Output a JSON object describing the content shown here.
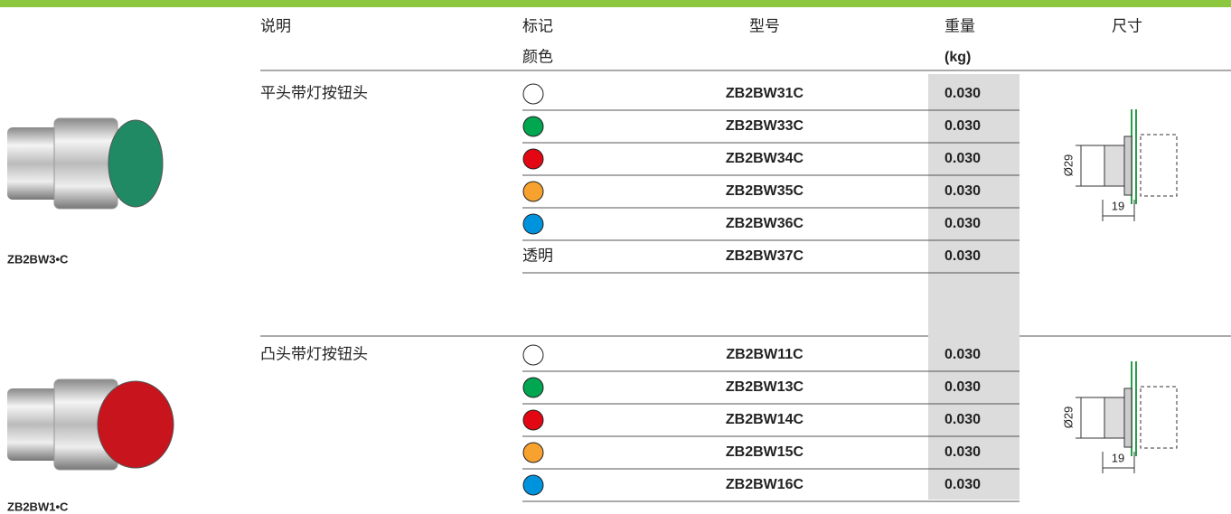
{
  "header": {
    "description": "说明",
    "marking": "标记",
    "color": "颜色",
    "model": "型号",
    "weight": "重量",
    "weight_unit": "(kg)",
    "dimensions": "尺寸"
  },
  "groups": [
    {
      "image_label": "ZB2BW3•C",
      "description": "平头带灯按钮头",
      "cap_color": "#1f8a63",
      "diameter": "Ø29",
      "length": "19",
      "rows": [
        {
          "marker_color": "#ffffff",
          "model": "ZB2BW31C",
          "weight": "0.030"
        },
        {
          "marker_color": "#00a650",
          "model": "ZB2BW33C",
          "weight": "0.030"
        },
        {
          "marker_color": "#e30613",
          "model": "ZB2BW34C",
          "weight": "0.030"
        },
        {
          "marker_color": "#f7a12f",
          "model": "ZB2BW35C",
          "weight": "0.030"
        },
        {
          "marker_color": "#0093dd",
          "model": "ZB2BW36C",
          "weight": "0.030"
        },
        {
          "marker_label": "透明",
          "model": "ZB2BW37C",
          "weight": "0.030"
        }
      ]
    },
    {
      "image_label": "ZB2BW1•C",
      "description": "凸头带灯按钮头",
      "cap_color": "#c8141c",
      "diameter": "Ø29",
      "length": "19",
      "rows": [
        {
          "marker_color": "#ffffff",
          "model": "ZB2BW11C",
          "weight": "0.030"
        },
        {
          "marker_color": "#00a650",
          "model": "ZB2BW13C",
          "weight": "0.030"
        },
        {
          "marker_color": "#e30613",
          "model": "ZB2BW14C",
          "weight": "0.030"
        },
        {
          "marker_color": "#f7a12f",
          "model": "ZB2BW15C",
          "weight": "0.030"
        },
        {
          "marker_color": "#0093dd",
          "model": "ZB2BW16C",
          "weight": "0.030"
        }
      ]
    }
  ]
}
